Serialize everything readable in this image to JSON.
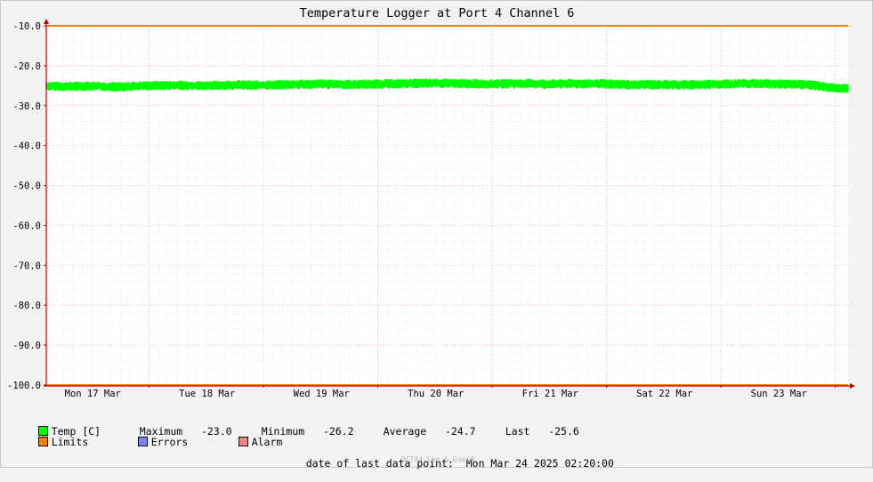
{
  "chart_data": {
    "type": "line",
    "title": "Temperature Logger at Port 4 Channel 6",
    "ylim": [
      -100,
      -10
    ],
    "yticks": [
      -10,
      -20,
      -30,
      -40,
      -50,
      -60,
      -70,
      -80,
      -90,
      -100
    ],
    "ytick_labels": [
      "-10.0",
      "-20.0",
      "-30.0",
      "-40.0",
      "-50.0",
      "-60.0",
      "-70.0",
      "-80.0",
      "-90.0",
      "-100.0"
    ],
    "x_tick_labels": [
      "Mon 17 Mar",
      "Tue 18 Mar",
      "Wed 19 Mar",
      "Thu 20 Mar",
      "Fri 21 Mar",
      "Sat 22 Mar",
      "Sun 23 Mar"
    ],
    "xlim_days": [
      0,
      7
    ],
    "grid": true,
    "series": [
      {
        "name": "Temp [C]",
        "color": "#00ff00",
        "days": [
          0,
          0.25,
          0.5,
          0.75,
          1,
          1.25,
          1.5,
          1.75,
          2,
          2.25,
          2.5,
          2.75,
          3,
          3.25,
          3.5,
          3.75,
          4,
          4.25,
          4.5,
          4.75,
          5,
          5.25,
          5.5,
          5.75,
          6,
          6.25,
          6.5,
          6.75,
          7
        ],
        "values": [
          -25.0,
          -25.2,
          -25.1,
          -25.3,
          -25.0,
          -24.9,
          -25.0,
          -24.8,
          -24.9,
          -24.7,
          -24.6,
          -24.7,
          -24.6,
          -24.5,
          -24.4,
          -24.5,
          -24.6,
          -24.5,
          -24.6,
          -24.5,
          -24.6,
          -24.8,
          -24.7,
          -24.8,
          -24.6,
          -24.5,
          -24.6,
          -24.7,
          -25.6
        ],
        "band": 1.2
      },
      {
        "name": "Limits",
        "color": "#ff7f00",
        "values": [
          -10,
          -100
        ]
      }
    ],
    "legend_extra": [
      {
        "name": "Errors",
        "color": "#7f7fff"
      },
      {
        "name": "Alarm",
        "color": "#ff7f7f"
      }
    ],
    "stats": {
      "maximum_label": "Maximum",
      "maximum": "-23.0",
      "minimum_label": "Minimum",
      "minimum": "-26.2",
      "average_label": "Average",
      "average": "-24.7",
      "last_label": "Last",
      "last": "-25.6"
    },
    "footer": {
      "label": "date of last data point:",
      "value": "Mon Mar 24 2025 02:20:00",
      "credit": "OCTA4 Log & Guard"
    }
  }
}
